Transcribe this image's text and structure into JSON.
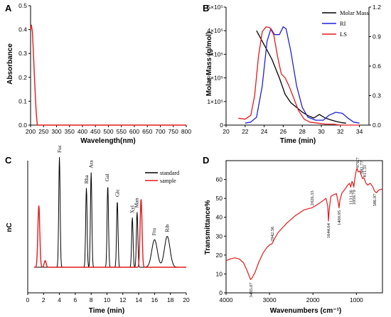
{
  "colors": {
    "black": "#000000",
    "red": "#e41a1c",
    "blue": "#1f1fe0"
  },
  "chart_data": [
    {
      "panel": "A",
      "type": "line",
      "xlabel": "Wavelength(nm)",
      "ylabel": "Absorbance",
      "xlim": [
        200,
        800
      ],
      "ylim": [
        0,
        0.5
      ],
      "xticks": [
        200,
        250,
        300,
        350,
        400,
        450,
        500,
        550,
        600,
        650,
        700,
        750,
        800
      ],
      "yticks": [
        0.0,
        0.1,
        0.2,
        0.3,
        0.4,
        0.5
      ],
      "ytick_labels": [
        "0.0",
        "0.1",
        "0.2",
        "0.3",
        "0.4",
        "0.5"
      ],
      "series": [
        {
          "color": "#e41a1c",
          "x": [
            200,
            203,
            207,
            211,
            215,
            219,
            222,
            226,
            800
          ],
          "y": [
            0.4,
            0.42,
            0.39,
            0.3,
            0.2,
            0.11,
            0.05,
            0.0,
            0.0
          ]
        }
      ]
    },
    {
      "panel": "B",
      "type": "line",
      "xlabel": "Time (min)",
      "ylabel": "Molar Mass (g/mol)",
      "xlim": [
        20,
        35
      ],
      "ylim": [
        0,
        500000
      ],
      "ylim_right": [
        0,
        1.2
      ],
      "xticks": [
        20,
        22,
        24,
        26,
        28,
        30,
        32,
        34
      ],
      "yticks": [
        0,
        100000,
        200000,
        300000,
        400000,
        500000
      ],
      "ytick_labels": [
        "0",
        "1×10⁵",
        "2×10⁵",
        "3×10⁵",
        "4×10⁵",
        "5×10⁵"
      ],
      "yticks_right": [
        0.0,
        0.3,
        0.6,
        0.9,
        1.2
      ],
      "ytick_labels_right": [
        "0.0",
        "0.3",
        "0.6",
        "0.9",
        "1.2"
      ],
      "legend": {
        "position": "top-right",
        "entries": [
          "Molar Mass",
          "RI",
          "LS"
        ]
      },
      "series": [
        {
          "name": "Molar Mass",
          "axis": "left",
          "color": "#000000",
          "x": [
            23.2,
            24.0,
            24.8,
            25.6,
            26.2,
            26.8,
            27.4,
            28.0,
            28.6,
            29.2,
            29.8,
            30.4,
            31.0,
            31.6,
            32.2,
            32.6
          ],
          "y": [
            400000,
            340000,
            280000,
            200000,
            130000,
            95000,
            75000,
            55000,
            40000,
            30000,
            45000,
            30000,
            22000,
            15000,
            10000,
            8000
          ]
        },
        {
          "name": "RI",
          "axis": "right",
          "color": "#1f1fe0",
          "x": [
            22.0,
            22.6,
            23.2,
            23.8,
            24.3,
            24.7,
            25.1,
            25.6,
            26.0,
            26.3,
            26.8,
            27.4,
            28.0,
            28.6,
            29.4,
            30.2,
            30.8,
            31.5,
            32.2,
            32.8,
            33.4,
            34.0
          ],
          "y": [
            0.02,
            0.03,
            0.08,
            0.4,
            0.85,
            0.98,
            0.92,
            0.92,
            1.0,
            0.98,
            0.75,
            0.4,
            0.18,
            0.08,
            0.05,
            0.05,
            0.1,
            0.13,
            0.12,
            0.07,
            0.03,
            0.02
          ]
        },
        {
          "name": "LS",
          "axis": "right",
          "color": "#e41a1c",
          "x": [
            21.3,
            22.0,
            22.6,
            23.0,
            23.4,
            23.8,
            24.2,
            24.6,
            25.0,
            25.4,
            25.8,
            26.2,
            26.6,
            27.0,
            27.6,
            28.2,
            28.8,
            29.6,
            30.4,
            31.2,
            32.0,
            33.0,
            34.0
          ],
          "y": [
            0.07,
            0.06,
            0.1,
            0.3,
            0.7,
            0.95,
            1.0,
            0.99,
            0.92,
            0.7,
            0.52,
            0.48,
            0.4,
            0.3,
            0.15,
            0.06,
            0.03,
            0.02,
            0.01,
            0.01,
            0.0,
            0.0,
            0.0
          ]
        }
      ]
    },
    {
      "panel": "C",
      "type": "line",
      "xlabel": "Time (min)",
      "ylabel": "nC",
      "xlim": [
        0,
        20
      ],
      "xticks": [
        0,
        2,
        4,
        6,
        8,
        10,
        12,
        14,
        16,
        18,
        20
      ],
      "legend": {
        "position": "top-right",
        "entries": [
          "standard",
          "sample"
        ]
      },
      "peak_labels": [
        {
          "x": 4.0,
          "label": "Fuc"
        },
        {
          "x": 7.4,
          "label": "Rha"
        },
        {
          "x": 8.0,
          "label": "Ara"
        },
        {
          "x": 10.0,
          "label": "Gal"
        },
        {
          "x": 11.3,
          "label": "Glc"
        },
        {
          "x": 13.2,
          "label": "Xyl"
        },
        {
          "x": 13.7,
          "label": "Man"
        },
        {
          "x": 15.9,
          "label": "Fru"
        },
        {
          "x": 17.6,
          "label": "Rib"
        }
      ],
      "series": [
        {
          "name": "standard",
          "color": "#000000",
          "peaks": [
            [
              4.0,
              1.0
            ],
            [
              7.4,
              0.72
            ],
            [
              8.0,
              0.86
            ],
            [
              10.1,
              0.74
            ],
            [
              11.3,
              0.6
            ],
            [
              13.2,
              0.45
            ],
            [
              13.8,
              0.5
            ],
            [
              16.0,
              0.25
            ],
            [
              17.6,
              0.28
            ]
          ]
        },
        {
          "name": "sample",
          "color": "#e41a1c",
          "peaks": [
            [
              1.4,
              0.56
            ],
            [
              2.2,
              0.06
            ],
            [
              14.3,
              0.62
            ]
          ]
        }
      ]
    },
    {
      "panel": "D",
      "type": "line",
      "xlabel": "Wavenumbers (cm⁻¹)",
      "ylabel": "Transmittance%",
      "xlim": [
        4000,
        400
      ],
      "ylim": [
        0,
        70
      ],
      "xticks": [
        4000,
        3000,
        2000,
        1000
      ],
      "yticks": [
        0,
        10,
        20,
        30,
        40,
        50,
        60
      ],
      "annotations": [
        {
          "x": 3435.07,
          "label": "3435.07"
        },
        {
          "x": 2942.56,
          "label": "2942.56"
        },
        {
          "x": 2026.33,
          "label": "2026.33"
        },
        {
          "x": 1644.64,
          "label": "1644.64"
        },
        {
          "x": 1400.95,
          "label": "1400.95"
        },
        {
          "x": 1131.36,
          "label": "1131.36"
        },
        {
          "x": 1059.79,
          "label": "1059.79"
        },
        {
          "x": 976.7,
          "label": "976.7"
        },
        {
          "x": 882.77,
          "label": "882.77"
        },
        {
          "x": 811.31,
          "label": "811.31"
        },
        {
          "x": 586.97,
          "label": "586.97"
        }
      ],
      "series": [
        {
          "color": "#e41a1c",
          "x": [
            4000,
            3900,
            3800,
            3700,
            3600,
            3520,
            3470,
            3435,
            3400,
            3330,
            3250,
            3150,
            3060,
            2990,
            2942,
            2900,
            2800,
            2600,
            2400,
            2200,
            2026,
            1950,
            1850,
            1760,
            1700,
            1660,
            1644,
            1625,
            1590,
            1520,
            1460,
            1420,
            1400,
            1380,
            1330,
            1260,
            1200,
            1160,
            1131,
            1100,
            1080,
            1060,
            1040,
            1010,
            985,
            976,
            955,
            920,
            900,
            882,
            860,
            835,
            811,
            780,
            740,
            680,
            620,
            587,
            540,
            480,
            400
          ],
          "y": [
            17,
            18,
            18.5,
            18,
            16,
            12,
            9,
            7,
            8,
            11,
            16,
            21,
            24,
            25.5,
            26,
            28,
            32,
            37,
            41,
            44,
            45,
            46,
            47.5,
            49,
            50,
            46,
            38,
            44,
            51,
            52,
            52.5,
            48,
            45,
            49,
            53,
            55,
            57,
            58,
            56,
            59,
            58,
            56,
            60,
            64,
            66,
            65,
            64,
            64.5,
            63,
            62,
            60.5,
            61,
            60,
            58,
            57,
            58,
            56,
            54,
            53,
            54.5,
            55
          ]
        }
      ]
    }
  ]
}
